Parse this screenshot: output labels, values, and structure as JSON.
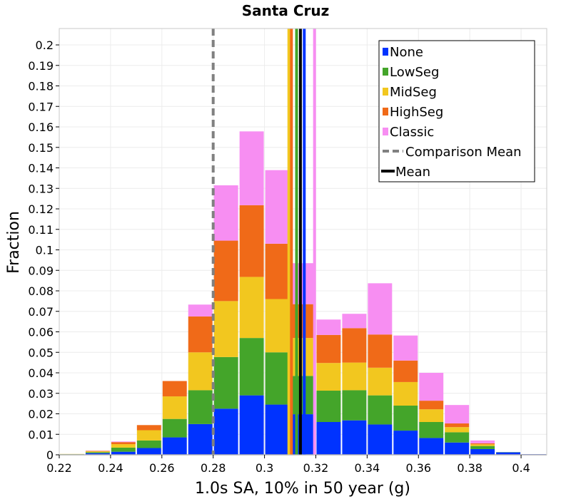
{
  "chart_data": {
    "type": "bar",
    "stacked": true,
    "title": "Santa Cruz",
    "xlabel": "1.0s SA, 10% in 50 year (g)",
    "ylabel": "Fraction",
    "xlim": [
      0.22,
      0.41
    ],
    "ylim": [
      0,
      0.208
    ],
    "xticks": [
      "0.22",
      "0.24",
      "0.26",
      "0.28",
      "0.3",
      "0.32",
      "0.34",
      "0.36",
      "0.38",
      "0.4"
    ],
    "xtick_values": [
      0.22,
      0.24,
      0.26,
      0.28,
      0.3,
      0.32,
      0.34,
      0.36,
      0.38,
      0.4
    ],
    "yticks": [
      "0",
      "0.01",
      "0.02",
      "0.03",
      "0.04",
      "0.05",
      "0.06",
      "0.07",
      "0.08",
      "0.09",
      "0.1",
      "0.11",
      "0.12",
      "0.13",
      "0.14",
      "0.15",
      "0.16",
      "0.17",
      "0.18",
      "0.19",
      "0.2"
    ],
    "ytick_values": [
      0,
      0.01,
      0.02,
      0.03,
      0.04,
      0.05,
      0.06,
      0.07,
      0.08,
      0.09,
      0.1,
      0.11,
      0.12,
      0.13,
      0.14,
      0.15,
      0.16,
      0.17,
      0.18,
      0.19,
      0.2
    ],
    "grid": true,
    "legend_position": "top-right",
    "bin_width": 0.01,
    "bin_centers": [
      0.225,
      0.235,
      0.245,
      0.255,
      0.265,
      0.275,
      0.285,
      0.295,
      0.305,
      0.315,
      0.325,
      0.335,
      0.345,
      0.355,
      0.365,
      0.375,
      0.385,
      0.395,
      0.405
    ],
    "series": [
      {
        "name": "None",
        "color": "#0033ff",
        "values": [
          0.0002,
          0.0008,
          0.0015,
          0.0033,
          0.0085,
          0.015,
          0.0225,
          0.029,
          0.0245,
          0.0198,
          0.016,
          0.0168,
          0.0148,
          0.0118,
          0.0082,
          0.006,
          0.0028,
          0.0012,
          0.0003
        ]
      },
      {
        "name": "LowSeg",
        "color": "#44a52a",
        "values": [
          0.0001,
          0.0005,
          0.002,
          0.0037,
          0.009,
          0.0165,
          0.0252,
          0.028,
          0.0255,
          0.0187,
          0.0153,
          0.0147,
          0.0142,
          0.0122,
          0.0078,
          0.005,
          0.0015,
          0.0001,
          0.0
        ]
      },
      {
        "name": "MidSeg",
        "color": "#f2c71f",
        "values": [
          0.0001,
          0.0004,
          0.0017,
          0.005,
          0.011,
          0.0185,
          0.0273,
          0.0298,
          0.026,
          0.0185,
          0.0135,
          0.0135,
          0.0135,
          0.0115,
          0.0062,
          0.0025,
          0.0008,
          0.0,
          0.0
        ]
      },
      {
        "name": "HighSeg",
        "color": "#f06a18",
        "values": [
          0.0,
          0.0002,
          0.001,
          0.0025,
          0.0075,
          0.0175,
          0.0295,
          0.035,
          0.027,
          0.0165,
          0.0137,
          0.0168,
          0.0162,
          0.0105,
          0.0042,
          0.0018,
          0.0005,
          0.0,
          0.0
        ]
      },
      {
        "name": "Classic",
        "color": "#f78ef2",
        "values": [
          0.0,
          0.0001,
          0.0003,
          0.0,
          0.0,
          0.0058,
          0.027,
          0.036,
          0.0359,
          0.02,
          0.0075,
          0.007,
          0.025,
          0.0122,
          0.0136,
          0.009,
          0.0014,
          0.0,
          0.0
        ]
      }
    ],
    "vertical_lines": [
      {
        "name": "Comparison Mean",
        "x": 0.28,
        "color": "#808080",
        "style": "dashed"
      },
      {
        "name": "MidSeg mean",
        "x": 0.3095,
        "color": "#f2c71f",
        "style": "solid"
      },
      {
        "name": "HighSeg mean",
        "x": 0.3105,
        "color": "#f06a18",
        "style": "solid"
      },
      {
        "name": "LowSeg mean",
        "x": 0.3125,
        "color": "#44a52a",
        "style": "solid"
      },
      {
        "name": "Mean",
        "x": 0.314,
        "color": "#000000",
        "style": "solid"
      },
      {
        "name": "None mean",
        "x": 0.3155,
        "color": "#0033ff",
        "style": "solid"
      },
      {
        "name": "Classic mean",
        "x": 0.3195,
        "color": "#f78ef2",
        "style": "solid"
      }
    ],
    "legend": [
      {
        "label": "None",
        "color": "#0033ff",
        "kind": "box"
      },
      {
        "label": "LowSeg",
        "color": "#44a52a",
        "kind": "box"
      },
      {
        "label": "MidSeg",
        "color": "#f2c71f",
        "kind": "box"
      },
      {
        "label": "HighSeg",
        "color": "#f06a18",
        "kind": "box"
      },
      {
        "label": "Classic",
        "color": "#f78ef2",
        "kind": "box"
      },
      {
        "label": "Comparison Mean",
        "color": "#808080",
        "kind": "dashed"
      },
      {
        "label": "Mean",
        "color": "#000000",
        "kind": "line"
      }
    ]
  }
}
